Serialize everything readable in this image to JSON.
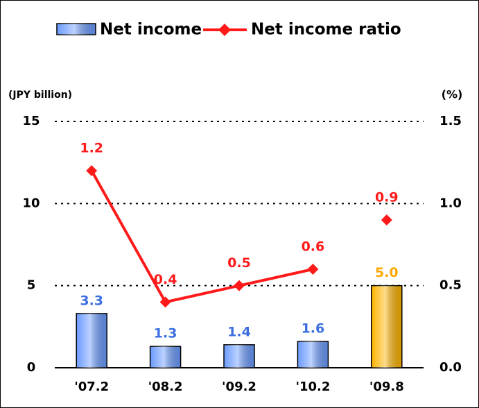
{
  "chart_data": {
    "type": "bar",
    "categories": [
      "'07.2",
      "'08.2",
      "'09.2",
      "'10.2",
      "'09.8"
    ],
    "ylabel": "(JPY billion)",
    "y2label": "(%)",
    "ylim": [
      0,
      15
    ],
    "yticks": [
      0,
      5,
      10,
      15
    ],
    "y2lim": [
      0,
      1.5
    ],
    "y2ticks": [
      {
        "value": 0,
        "label": "0.0"
      },
      {
        "value": 0.5,
        "label": "0.5"
      },
      {
        "value": 1,
        "label": "1.0"
      },
      {
        "value": 1.5,
        "label": "1.5"
      }
    ],
    "grid": true,
    "legend": "top",
    "series": [
      {
        "name": "Net income",
        "type": "bar",
        "colors": [
          "#6a9bff",
          "#6a9bff",
          "#6a9bff",
          "#6a9bff",
          "#ffb400"
        ],
        "label_colors": [
          "#3d6fe0",
          "#3d6fe0",
          "#3d6fe0",
          "#3d6fe0",
          "#ffa800"
        ],
        "values": [
          3.3,
          1.3,
          1.4,
          1.6,
          5
        ],
        "value_labels": [
          "3.3",
          "1.3",
          "1.4",
          "1.6",
          "5.0"
        ]
      },
      {
        "name": "Net income ratio",
        "type": "line",
        "axis": "y2",
        "color": "#ff1a1a",
        "values": [
          1.2,
          0.4,
          0.5,
          0.6,
          0.9
        ],
        "connected": [
          true,
          true,
          true,
          false
        ]
      }
    ]
  }
}
